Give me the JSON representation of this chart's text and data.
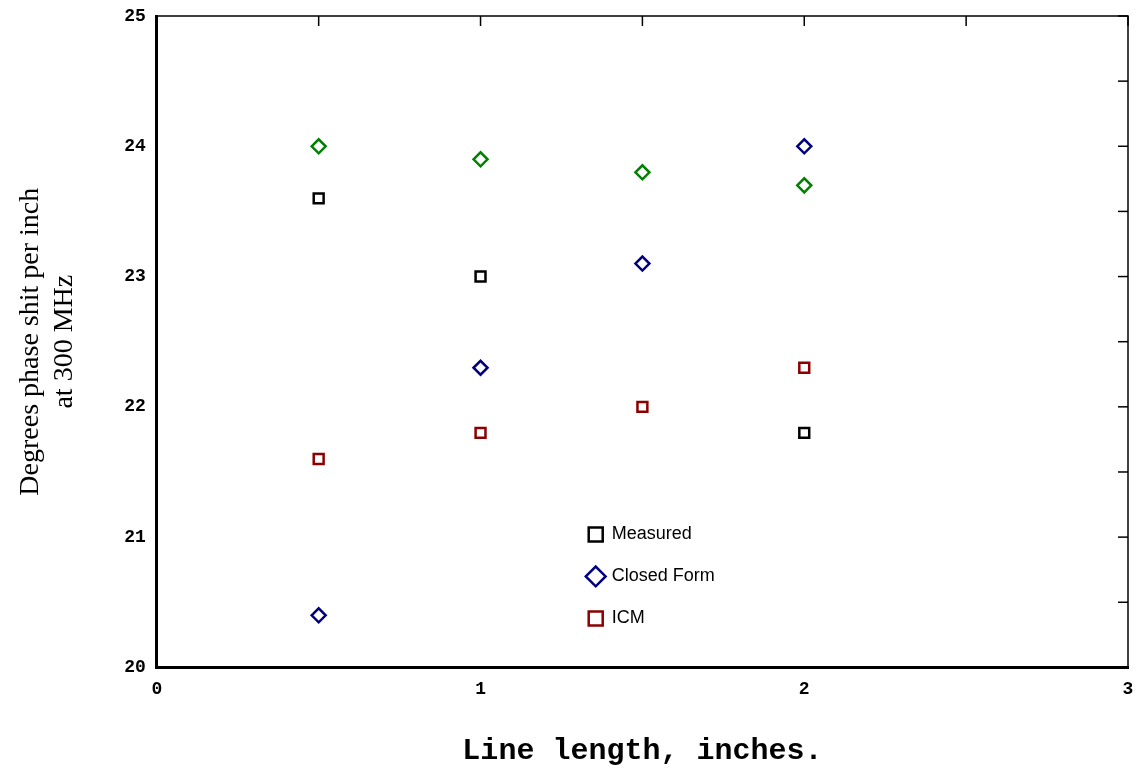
{
  "chart_data": {
    "type": "scatter",
    "xlabel": "Line length, inches.",
    "ylabel": "Degrees phase shit per inch\nat 300 MHz",
    "xlim": [
      0,
      3
    ],
    "xticks": [
      0,
      {
        "value": 0.5,
        "label": null
      },
      1,
      {
        "value": 1.5,
        "label": null
      },
      2,
      {
        "value": 2.5,
        "label": null
      },
      3
    ],
    "ylim": [
      20,
      25
    ],
    "yticks": [
      20,
      {
        "value": 20.5,
        "label": null
      },
      21,
      {
        "value": 21.5,
        "label": null
      },
      22,
      {
        "value": 22.5,
        "label": null
      },
      23,
      {
        "value": 23.5,
        "label": null
      },
      24,
      {
        "value": 24.5,
        "label": null
      },
      25
    ],
    "grid": false,
    "legend": "bottom",
    "series": [
      {
        "name": "Measured",
        "color": "#000000",
        "marker": "square",
        "x": [
          0.5,
          1,
          2
        ],
        "values": [
          23.6,
          23.0,
          21.8
        ]
      },
      {
        "name": "Closed Form",
        "color": "#000080",
        "marker": "diamond",
        "x": [
          0.5,
          1,
          1.5,
          2
        ],
        "values": [
          20.4,
          22.3,
          23.1,
          24.0
        ]
      },
      {
        "name": "ICM",
        "color": "#8b0000",
        "marker": "square",
        "x": [
          0.5,
          1,
          1.5,
          2
        ],
        "values": [
          21.6,
          21.8,
          22.0,
          22.3
        ]
      },
      {
        "color": "#008000",
        "marker": "diamond",
        "x": [
          0.5,
          1,
          1.5,
          2
        ],
        "values": [
          24.0,
          23.9,
          23.8,
          23.7
        ]
      }
    ]
  }
}
